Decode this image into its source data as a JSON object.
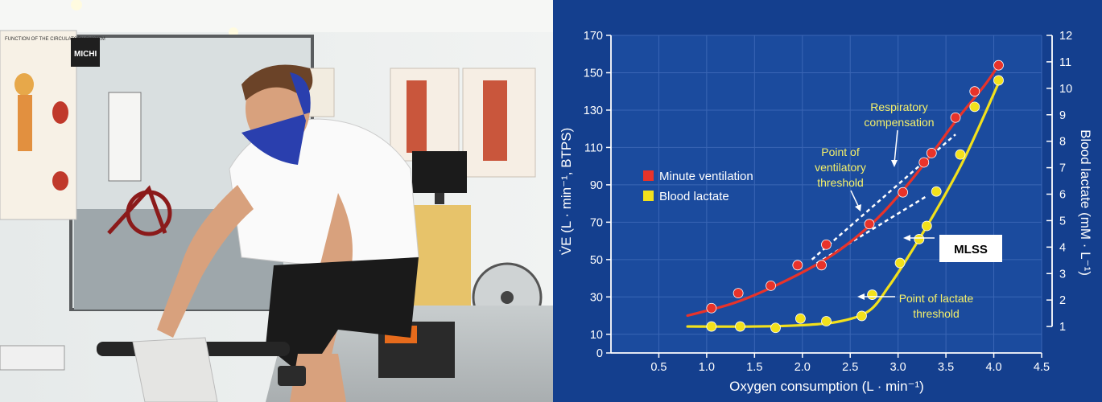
{
  "photo": {
    "chart_poster_title": "FUNCTION OF THE CIRCULATORY SYSTEM",
    "logo_text": "MICHI"
  },
  "chart_data": {
    "type": "line",
    "xlabel": "Oxygen consumption (L · min⁻¹)",
    "ylabel_left": "V̇E (L · min⁻¹, BTPS)",
    "ylabel_right": "Blood lactate (mM · L⁻¹)",
    "xlim": [
      0,
      4.5
    ],
    "ylim_left": [
      0,
      170
    ],
    "ylim_right": [
      0,
      12
    ],
    "x_ticks": [
      "0.5",
      "1.0",
      "1.5",
      "2.0",
      "2.5",
      "3.0",
      "3.5",
      "4.0",
      "4.5"
    ],
    "y_ticks_left": [
      "0",
      "10",
      "30",
      "50",
      "70",
      "90",
      "110",
      "130",
      "150",
      "170"
    ],
    "y_ticks_right": [
      "1",
      "2",
      "3",
      "4",
      "5",
      "6",
      "7",
      "8",
      "9",
      "10",
      "11",
      "12"
    ],
    "grid": true,
    "legend_position": "left-middle",
    "series": [
      {
        "name": "Minute ventilation",
        "axis": "left",
        "color": "#e8332a",
        "points": [
          [
            1.05,
            24
          ],
          [
            1.33,
            32
          ],
          [
            1.67,
            36
          ],
          [
            1.95,
            47
          ],
          [
            2.2,
            47
          ],
          [
            2.25,
            58
          ],
          [
            2.7,
            69
          ],
          [
            3.05,
            86
          ],
          [
            3.27,
            102
          ],
          [
            3.35,
            107
          ],
          [
            3.6,
            126
          ],
          [
            3.8,
            140
          ],
          [
            4.05,
            154
          ]
        ],
        "curve": [
          [
            0.8,
            20
          ],
          [
            1.3,
            27
          ],
          [
            1.8,
            38
          ],
          [
            2.3,
            52
          ],
          [
            2.7,
            68
          ],
          [
            3.0,
            84
          ],
          [
            3.3,
            103
          ],
          [
            3.6,
            124
          ],
          [
            3.9,
            143
          ],
          [
            4.05,
            154
          ]
        ]
      },
      {
        "name": "Blood lactate",
        "axis": "right",
        "color": "#f2e11c",
        "points": [
          [
            1.05,
            1.0
          ],
          [
            1.35,
            1.0
          ],
          [
            1.72,
            0.95
          ],
          [
            1.98,
            1.3
          ],
          [
            2.25,
            1.2
          ],
          [
            2.62,
            1.4
          ],
          [
            2.73,
            2.2
          ],
          [
            3.02,
            3.4
          ],
          [
            3.22,
            4.3
          ],
          [
            3.3,
            4.8
          ],
          [
            3.4,
            6.1
          ],
          [
            3.65,
            7.5
          ],
          [
            3.8,
            9.3
          ],
          [
            4.05,
            10.3
          ]
        ],
        "curve": [
          [
            0.8,
            1.0
          ],
          [
            1.5,
            1.0
          ],
          [
            2.0,
            1.05
          ],
          [
            2.4,
            1.2
          ],
          [
            2.7,
            1.6
          ],
          [
            2.9,
            2.5
          ],
          [
            3.1,
            3.6
          ],
          [
            3.4,
            5.4
          ],
          [
            3.7,
            7.4
          ],
          [
            4.05,
            10.2
          ]
        ]
      }
    ],
    "extrapolations": [
      [
        [
          2.1,
          50
        ],
        [
          3.6,
          117
        ]
      ],
      [
        [
          2.15,
          48
        ],
        [
          3.3,
          84
        ]
      ]
    ],
    "annotations": {
      "respiratory_compensation": [
        "Respiratory",
        "compensation"
      ],
      "ventilatory_threshold": [
        "Point of",
        "ventilatory",
        "threshold"
      ],
      "lactate_threshold": [
        "Point of lactate",
        "threshold"
      ],
      "mlss": "MLSS"
    }
  }
}
